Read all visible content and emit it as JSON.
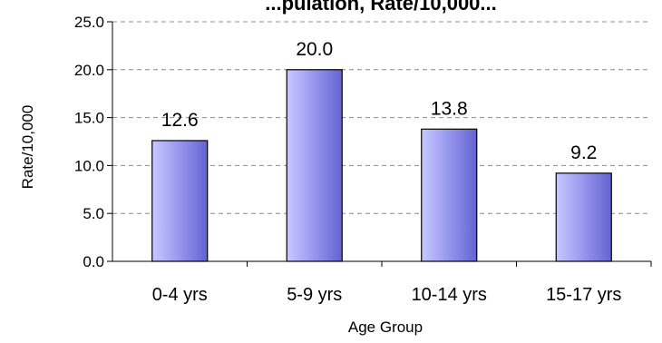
{
  "chart_data": {
    "type": "bar",
    "title": "...pulation, Rate/10,000...",
    "xlabel": "Age Group",
    "ylabel": "Rate/10,000",
    "categories": [
      "0-4 yrs",
      "5-9 yrs",
      "10-14 yrs",
      "15-17 yrs"
    ],
    "values": [
      12.6,
      20.0,
      13.8,
      9.2
    ],
    "value_labels": [
      "12.6",
      "20.0",
      "13.8",
      "9.2"
    ],
    "ylim": [
      0,
      25
    ],
    "yticks": [
      0,
      5,
      10,
      15,
      20,
      25
    ],
    "ytick_labels": [
      "0.0",
      "5.0",
      "10.0",
      "15.0",
      "20.0",
      "25.0"
    ],
    "grid": "horizontal dashed",
    "legend": "none",
    "colors": {
      "bar_fill_light": "#c8c8ff",
      "bar_fill_mid": "#9b9bf0",
      "bar_fill_dark": "#6363d2",
      "bar_stroke": "#000000",
      "grid": "#8c8c8c",
      "axis": "#000000"
    }
  }
}
